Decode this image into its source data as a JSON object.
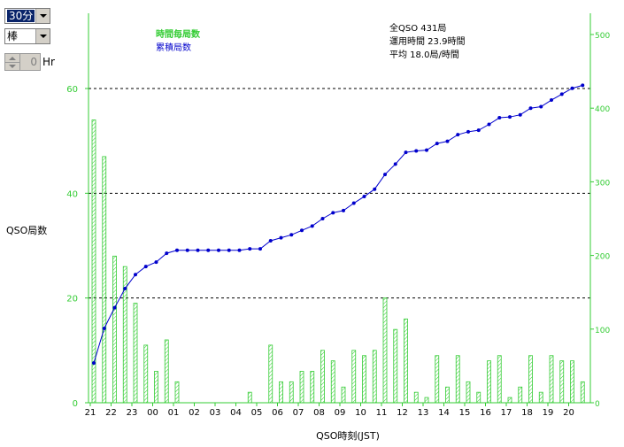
{
  "controls": {
    "interval_select": "30分",
    "chart_type_select": "棒",
    "hour_value": "0",
    "hour_unit": "Hr"
  },
  "summary": {
    "total": "全QSO 431局",
    "hours": "運用時間 23.9時間",
    "average": "平均 18.0局/時間"
  },
  "colors": {
    "bars": "#33cc33",
    "cumulative": "#0000cc",
    "axis": "#33cc33"
  },
  "chart_data": {
    "type": "bar",
    "ylabel": "QSO局数",
    "xlabel": "QSO時刻(JST)",
    "legend": [
      "時間毎局数",
      "累積局数"
    ],
    "ylim": [
      0,
      75
    ],
    "y2lim": [
      0,
      525
    ],
    "yticks": [
      "0",
      "20",
      "40",
      "60"
    ],
    "y2ticks": [
      "0",
      "100",
      "200",
      "300",
      "400",
      "500"
    ],
    "xticks": [
      "21",
      "22",
      "23",
      "00",
      "01",
      "02",
      "03",
      "04",
      "05",
      "06",
      "07",
      "08",
      "09",
      "10",
      "11",
      "12",
      "13",
      "14",
      "15",
      "16",
      "17",
      "18",
      "19",
      "20"
    ],
    "grid": "dashed at 20, 40, 60",
    "series": [
      {
        "name": "時間毎局数",
        "type": "bar",
        "values": [
          54,
          47,
          28,
          26,
          19,
          11,
          6,
          12,
          4,
          0,
          0,
          0,
          0,
          0,
          0,
          2,
          0,
          11,
          4,
          4,
          6,
          6,
          10,
          8,
          3,
          10,
          9,
          10,
          20,
          14,
          16,
          2,
          1,
          9,
          3,
          9,
          4,
          2,
          8,
          9,
          1,
          3,
          9,
          2,
          9,
          8,
          8,
          4
        ]
      },
      {
        "name": "累積局数",
        "type": "line",
        "values": [
          54,
          101,
          129,
          155,
          174,
          185,
          191,
          203,
          207,
          207,
          207,
          207,
          207,
          207,
          207,
          209,
          209,
          220,
          224,
          228,
          234,
          240,
          250,
          258,
          261,
          271,
          280,
          290,
          310,
          324,
          340,
          342,
          343,
          352,
          355,
          364,
          368,
          370,
          378,
          387,
          388,
          391,
          400,
          402,
          411,
          419,
          427,
          431
        ]
      }
    ]
  }
}
